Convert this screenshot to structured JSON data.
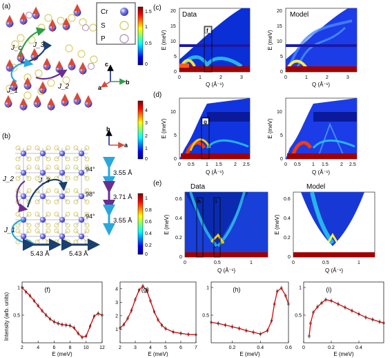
{
  "figure": {
    "panel_labels": [
      "(a)",
      "(b)",
      "(c)",
      "(d)",
      "(e)",
      "(f)",
      "(g)",
      "(h)",
      "(i)"
    ],
    "legend": {
      "items": [
        {
          "label": "Cr",
          "color": "#5b5bd6"
        },
        {
          "label": "S",
          "color": "#e6e08a"
        },
        {
          "label": "P",
          "color": "#c9b4cf"
        }
      ]
    },
    "crystal_a": {
      "couplings": [
        "J_c",
        "J_1",
        "J_2",
        "J_3"
      ],
      "axes": [
        "c",
        "a",
        "b"
      ]
    },
    "crystal_b": {
      "couplings": [
        "J_2",
        "J_3",
        "J_1"
      ],
      "axes": [
        "b",
        "a"
      ],
      "distances_vertical": [
        "3.55 Å",
        "3.71 Å",
        "3.55 Å"
      ],
      "angles": [
        "94°",
        "98°",
        "94°"
      ],
      "distances_horizontal": [
        "5.43 Å",
        "5.43 Å"
      ]
    },
    "colorbars": [
      {
        "ticks": [
          "1.5",
          "1",
          "0.5",
          "0"
        ]
      },
      {
        "ticks": [
          "4",
          "3",
          "2",
          "1",
          "0"
        ]
      },
      {
        "ticks": [
          "1",
          "0.8",
          "0.6",
          "0.4",
          "0.2",
          "0"
        ]
      }
    ],
    "maps": {
      "data_label": "Data",
      "model_label": "Model",
      "ylabel": "E (meV)",
      "xlabel": "Q (Å⁻¹)",
      "row_c": {
        "yticks": [
          "0",
          "5",
          "10",
          "15",
          "20"
        ],
        "xticks": [
          "0",
          "1",
          "2",
          "3"
        ],
        "cut_label": "f"
      },
      "row_d": {
        "yticks": [
          "0",
          "5",
          "10"
        ],
        "xticks": [
          "0",
          "0.5",
          "1",
          "1.5",
          "2",
          "2.5"
        ],
        "cut_label": "g"
      },
      "row_e": {
        "yticks": [
          "0",
          "0.2",
          "0.4",
          "0.6"
        ],
        "xticks": [
          "0",
          "0.5",
          "1"
        ],
        "cut_labels": [
          "h",
          "i"
        ]
      }
    },
    "cuts": {
      "ylabel": "Intensity (arb. units)",
      "xlabel": "E (meV)"
    }
  },
  "chart_data": [
    {
      "type": "line",
      "panel": "(f)",
      "xlabel": "E (meV)",
      "ylabel": "Intensity (arb. units)",
      "xlim": [
        2,
        12
      ],
      "ylim": [
        0,
        1.1
      ],
      "xticks": [
        2,
        4,
        6,
        8,
        10,
        12
      ],
      "yticks": [
        0.5,
        1
      ],
      "x": [
        2,
        2.5,
        3,
        3.5,
        4,
        4.5,
        5,
        5.5,
        6,
        6.5,
        7,
        7.5,
        8,
        8.5,
        9,
        9.5,
        10,
        10.5,
        11,
        11.5,
        12
      ],
      "y": [
        1.0,
        0.92,
        0.85,
        0.76,
        0.67,
        0.58,
        0.5,
        0.43,
        0.38,
        0.35,
        0.33,
        0.32,
        0.31,
        0.27,
        0.17,
        0.1,
        0.12,
        0.3,
        0.48,
        0.53,
        0.5
      ]
    },
    {
      "type": "line",
      "panel": "(g)",
      "xlabel": "E (meV)",
      "xlim": [
        2,
        7
      ],
      "ylim": [
        0,
        4.5
      ],
      "xticks": [
        2,
        3,
        4,
        5,
        6,
        7
      ],
      "yticks": [
        1,
        2,
        3,
        4
      ],
      "x": [
        2,
        2.25,
        2.5,
        2.75,
        3,
        3.25,
        3.5,
        3.75,
        4,
        4.25,
        4.5,
        4.75,
        5,
        5.5,
        6,
        6.5,
        7
      ],
      "y": [
        1.1,
        1.35,
        1.8,
        2.4,
        3.2,
        3.9,
        4.2,
        3.9,
        3.1,
        2.3,
        1.7,
        1.3,
        1.05,
        0.8,
        0.7,
        0.62,
        0.6
      ]
    },
    {
      "type": "line",
      "panel": "(h)",
      "xlabel": "E (meV)",
      "xlim": [
        0.05,
        0.6
      ],
      "ylim": [
        0,
        1.1
      ],
      "xticks": [
        0.2,
        0.4,
        0.6
      ],
      "yticks": [
        0.5,
        1
      ],
      "x": [
        0.05,
        0.1,
        0.15,
        0.2,
        0.25,
        0.3,
        0.35,
        0.4,
        0.45,
        0.48,
        0.5,
        0.52,
        0.55,
        0.58,
        0.6
      ],
      "y": [
        0.37,
        0.35,
        0.32,
        0.29,
        0.26,
        0.22,
        0.19,
        0.16,
        0.22,
        0.4,
        0.7,
        0.93,
        0.99,
        0.85,
        0.7
      ]
    },
    {
      "type": "line",
      "panel": "(i)",
      "xlabel": "E (meV)",
      "xlim": [
        0,
        0.58
      ],
      "ylim": [
        0,
        1.1
      ],
      "xticks": [
        0,
        0.2,
        0.4
      ],
      "yticks": [
        0.5,
        1
      ],
      "x": [
        0.04,
        0.05,
        0.07,
        0.1,
        0.13,
        0.16,
        0.2,
        0.25,
        0.3,
        0.35,
        0.4,
        0.45,
        0.5,
        0.55,
        0.58
      ],
      "y": [
        0.12,
        0.35,
        0.55,
        0.65,
        0.72,
        0.78,
        0.76,
        0.7,
        0.64,
        0.58,
        0.52,
        0.46,
        0.42,
        0.38,
        0.36
      ]
    }
  ]
}
